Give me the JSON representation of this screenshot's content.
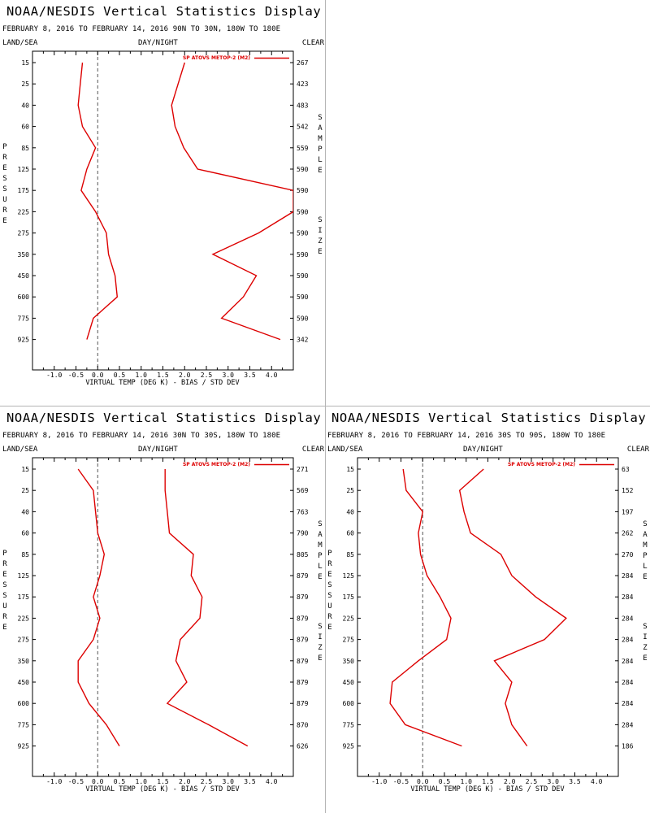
{
  "header": {
    "title": "NOAA/NESDIS Vertical Statistics Display",
    "left_label": "LAND/SEA",
    "mid_label": "DAY/NIGHT",
    "right_label": "CLEAR",
    "side_left": "PRESSURE",
    "side_right_1": "SAMPLE",
    "side_right_2": "SIZE"
  },
  "colors": {
    "series": "#dd0000",
    "axis": "#000000",
    "zero_line": "#555555"
  },
  "chart_data": [
    {
      "type": "line",
      "subtitle": "FEBRUARY 8, 2016 TO FEBRUARY 14, 2016 90N TO 30N, 180W TO 180E",
      "legend": "SP ATOVS METOP-2 (M2)",
      "legend_position": "top-right",
      "xlabel": "VIRTUAL TEMP (DEG K) - BIAS / STD DEV",
      "xlim": [
        -1.5,
        4.5
      ],
      "xticks": [
        -1.0,
        -0.5,
        0.0,
        0.5,
        1.0,
        1.5,
        2.0,
        2.5,
        3.0,
        3.5,
        4.0
      ],
      "xtick_labels": [
        "-1.0",
        "-0.5",
        "0.0",
        "0.5",
        "1.0",
        "1.5",
        "2.0",
        "2.5",
        "3.0",
        "3.5",
        "4.0"
      ],
      "pressure_levels": [
        "15",
        "25",
        "40",
        "60",
        "85",
        "125",
        "175",
        "225",
        "275",
        "350",
        "450",
        "600",
        "775",
        "925"
      ],
      "sample_size": [
        "267",
        "423",
        "483",
        "542",
        "559",
        "590",
        "590",
        "590",
        "590",
        "590",
        "590",
        "590",
        "590",
        "342"
      ],
      "bias": [
        -0.35,
        -0.4,
        -0.45,
        -0.35,
        -0.05,
        -0.25,
        -0.38,
        -0.05,
        0.2,
        0.25,
        0.4,
        0.45,
        -0.1,
        -0.25
      ],
      "std_dev": [
        2.0,
        1.85,
        1.7,
        1.78,
        1.98,
        2.3,
        4.5,
        4.5,
        3.7,
        2.65,
        3.65,
        3.35,
        2.85,
        4.2
      ]
    },
    {
      "type": "line",
      "subtitle": "FEBRUARY 8, 2016 TO FEBRUARY 14, 2016 30N TO 30S, 180W TO 180E",
      "legend": "SP ATOVS METOP-2 (M2)",
      "legend_position": "top-right",
      "xlabel": "VIRTUAL TEMP (DEG K) - BIAS / STD DEV",
      "xlim": [
        -1.5,
        4.5
      ],
      "xticks": [
        -1.0,
        -0.5,
        0.0,
        0.5,
        1.0,
        1.5,
        2.0,
        2.5,
        3.0,
        3.5,
        4.0
      ],
      "xtick_labels": [
        "-1.0",
        "-0.5",
        "0.0",
        "0.5",
        "1.0",
        "1.5",
        "2.0",
        "2.5",
        "3.0",
        "3.5",
        "4.0"
      ],
      "pressure_levels": [
        "15",
        "25",
        "40",
        "60",
        "85",
        "125",
        "175",
        "225",
        "275",
        "350",
        "450",
        "600",
        "775",
        "925"
      ],
      "sample_size": [
        "271",
        "569",
        "763",
        "790",
        "805",
        "879",
        "879",
        "879",
        "879",
        "879",
        "879",
        "879",
        "870",
        "626"
      ],
      "bias": [
        -0.45,
        -0.1,
        -0.05,
        0.0,
        0.15,
        0.05,
        -0.1,
        0.05,
        -0.1,
        -0.45,
        -0.45,
        -0.2,
        0.2,
        0.5
      ],
      "std_dev": [
        1.55,
        1.55,
        1.6,
        1.65,
        2.2,
        2.15,
        2.4,
        2.35,
        1.9,
        1.8,
        2.05,
        1.6,
        2.55,
        3.45
      ]
    },
    {
      "type": "line",
      "subtitle": "FEBRUARY 8, 2016 TO FEBRUARY 14, 2016 30S TO 90S, 180W TO 180E",
      "legend": "SP ATOVS METOP-2 (M2)",
      "legend_position": "top-right",
      "xlabel": "VIRTUAL TEMP (DEG K) - BIAS / STD DEV",
      "xlim": [
        -1.5,
        4.5
      ],
      "xticks": [
        -1.0,
        -0.5,
        0.0,
        0.5,
        1.0,
        1.5,
        2.0,
        2.5,
        3.0,
        3.5,
        4.0
      ],
      "xtick_labels": [
        "-1.0",
        "-0.5",
        "0.0",
        "0.5",
        "1.0",
        "1.5",
        "2.0",
        "2.5",
        "3.0",
        "3.5",
        "4.0"
      ],
      "pressure_levels": [
        "15",
        "25",
        "40",
        "60",
        "85",
        "125",
        "175",
        "225",
        "275",
        "350",
        "450",
        "600",
        "775",
        "925"
      ],
      "sample_size": [
        "63",
        "152",
        "197",
        "262",
        "270",
        "284",
        "284",
        "284",
        "284",
        "284",
        "284",
        "284",
        "284",
        "186"
      ],
      "bias": [
        -0.45,
        -0.38,
        0.0,
        -0.1,
        -0.05,
        0.1,
        0.4,
        0.65,
        0.55,
        -0.1,
        -0.7,
        -0.75,
        -0.4,
        0.9
      ],
      "std_dev": [
        1.4,
        0.85,
        0.95,
        1.1,
        1.8,
        2.05,
        2.6,
        3.3,
        2.8,
        1.65,
        2.05,
        1.9,
        2.05,
        2.4
      ]
    }
  ]
}
